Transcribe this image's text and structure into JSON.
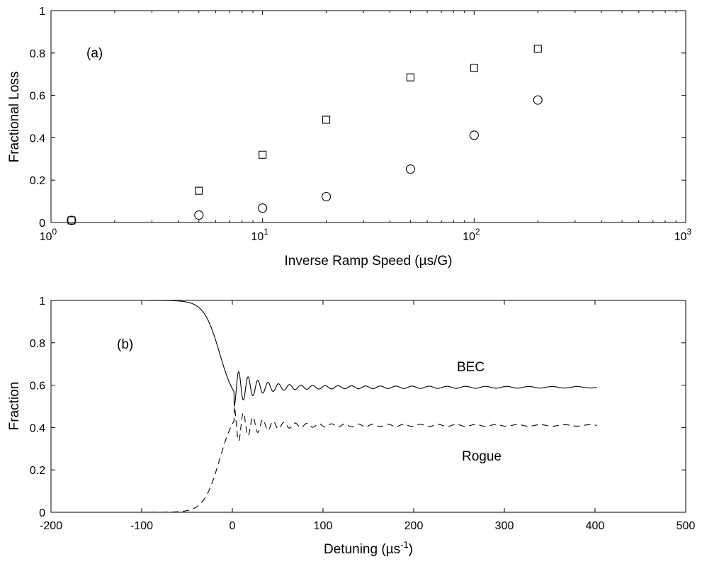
{
  "chart_data": [
    {
      "panel": "(a)",
      "type": "scatter",
      "xscale": "log",
      "xlabel": "Inverse Ramp Speed (µs/G)",
      "ylabel": "Fractional Loss",
      "xlim": [
        1,
        1000
      ],
      "ylim": [
        0,
        1
      ],
      "xtick_labels": [
        {
          "base": "10",
          "exp": "0",
          "value": 1
        },
        {
          "base": "10",
          "exp": "1",
          "value": 10
        },
        {
          "base": "10",
          "exp": "2",
          "value": 100
        },
        {
          "base": "10",
          "exp": "3",
          "value": 1000
        }
      ],
      "ytick_labels": [
        "0",
        "0.2",
        "0.4",
        "0.6",
        "0.8",
        "1"
      ],
      "yticks": [
        0,
        0.2,
        0.4,
        0.6,
        0.8,
        1
      ],
      "annotations": [
        "(a)"
      ],
      "grid": false,
      "series": [
        {
          "marker": "square",
          "x": [
            1.25,
            5,
            10,
            20,
            50,
            100,
            200
          ],
          "y": [
            0.01,
            0.15,
            0.32,
            0.485,
            0.685,
            0.73,
            0.82
          ]
        },
        {
          "marker": "circle",
          "x": [
            1.25,
            5,
            10,
            20,
            50,
            100,
            200
          ],
          "y": [
            0.01,
            0.035,
            0.068,
            0.122,
            0.252,
            0.412,
            0.578
          ]
        }
      ]
    },
    {
      "panel": "(b)",
      "type": "line",
      "xlabel": "Detuning (µs",
      "xlabel_sup": "-1",
      "xlabel_close": ")",
      "ylabel": "Fraction",
      "xlim": [
        -200,
        500
      ],
      "ylim": [
        0,
        1
      ],
      "xticks": [
        -200,
        -100,
        0,
        100,
        200,
        300,
        400,
        500
      ],
      "xtick_labels": [
        "-200",
        "-100",
        "0",
        "100",
        "200",
        "300",
        "400",
        "500"
      ],
      "yticks": [
        0,
        0.2,
        0.4,
        0.6,
        0.8,
        1
      ],
      "ytick_labels": [
        "0",
        "0.2",
        "0.4",
        "0.6",
        "0.8",
        "1"
      ],
      "annotations": [
        "(b)",
        "BEC",
        "Rogue"
      ],
      "grid": false,
      "series": [
        {
          "name": "BEC",
          "style": "solid",
          "x_range": [
            -125,
            402
          ],
          "start_value": 1.0,
          "min_value": 0.5,
          "x_at_min": 2,
          "final_value": 0.59
        },
        {
          "name": "Rogue",
          "style": "dashed",
          "x_range": [
            -125,
            402
          ],
          "start_value": 0.0,
          "max_value": 0.5,
          "x_at_max": 2,
          "final_value": 0.41
        }
      ]
    }
  ]
}
